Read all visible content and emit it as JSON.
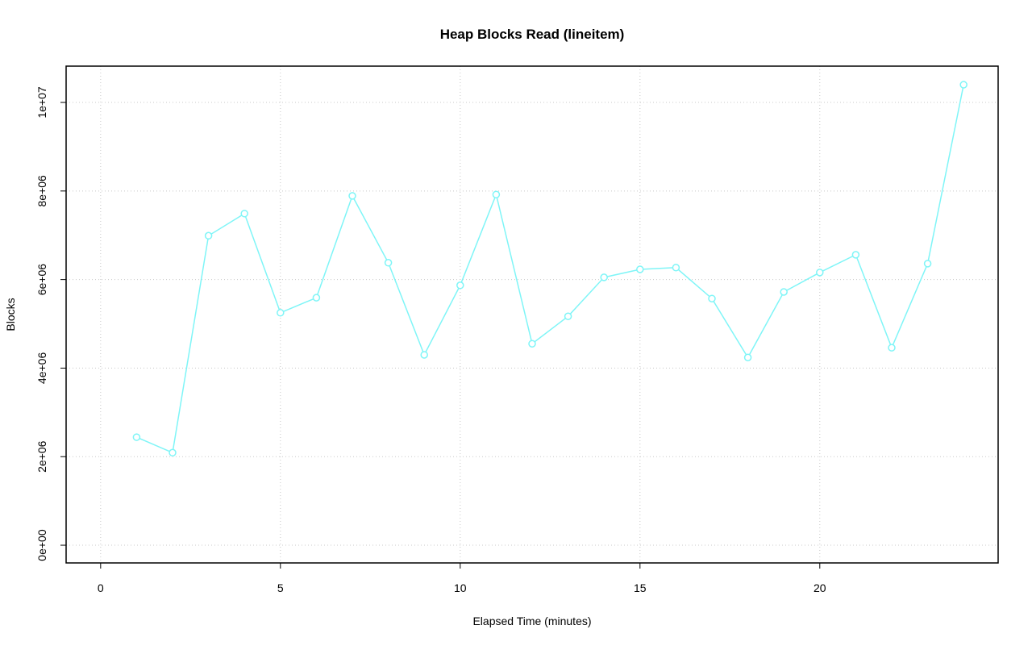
{
  "chart_data": {
    "type": "line",
    "title": "Heap Blocks Read (lineitem)",
    "x_label": "Elapsed Time (minutes)",
    "y_label": "Blocks",
    "x": [
      1,
      2,
      3,
      4,
      5,
      6,
      7,
      8,
      9,
      10,
      11,
      12,
      13,
      14,
      15,
      16,
      17,
      18,
      19,
      20,
      21,
      22,
      23,
      24
    ],
    "series": [
      {
        "color": "#7ff5f7",
        "values": [
          2440000,
          2090000,
          6990000,
          7490000,
          5250000,
          5590000,
          7890000,
          6380000,
          4300000,
          5870000,
          7920000,
          4550000,
          5170000,
          6050000,
          6230000,
          6270000,
          5570000,
          4240000,
          5720000,
          6160000,
          6560000,
          4460000,
          6360000,
          10400000
        ]
      }
    ],
    "xlim": [
      -0.96,
      24.96
    ],
    "ylim": [
      -400000,
      10820000
    ],
    "xticks": [
      0,
      5,
      10,
      15,
      20
    ],
    "yticks": [
      {
        "value": 0,
        "label": "0e+00"
      },
      {
        "value": 2000000,
        "label": "2e+06"
      },
      {
        "value": 4000000,
        "label": "4e+06"
      },
      {
        "value": 6000000,
        "label": "6e+06"
      },
      {
        "value": 8000000,
        "label": "8e+06"
      },
      {
        "value": 10000000,
        "label": "1e+07"
      }
    ],
    "grid": true
  }
}
